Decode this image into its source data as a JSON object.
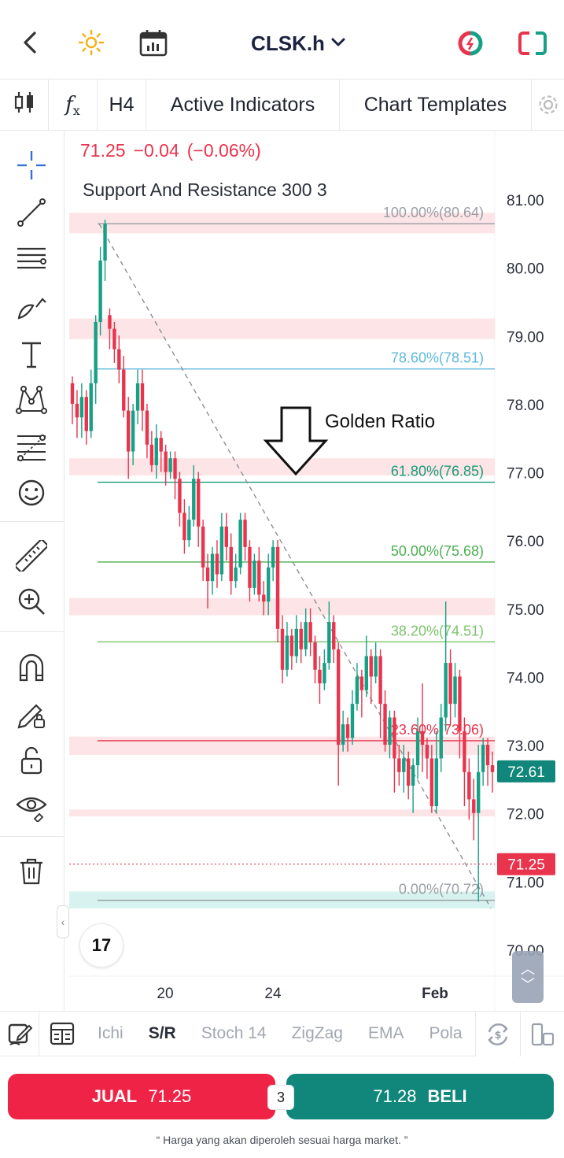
{
  "header": {
    "symbol": "CLSK.h",
    "icons": [
      "back-arrow-icon",
      "sun-icon",
      "calendar-icon",
      "chevron-down-icon",
      "signal-circle-icon",
      "expand-frame-icon"
    ]
  },
  "toolbar": {
    "timeframe": "H4",
    "active_indicators": "Active Indicators",
    "chart_templates": "Chart Templates",
    "fx_label": "f"
  },
  "chart": {
    "last_price": "71.25",
    "change": "−0.04",
    "change_pct": "(−0.06%)",
    "indicator_label": "Support And Resistance 300 3",
    "annotation": "Golden Ratio",
    "current_price_tag": "71.25",
    "other_price_tag": "72.61",
    "tv_logo": "17"
  },
  "chart_data": {
    "type": "candlestick",
    "y_ticks": [
      "81.00",
      "80.00",
      "79.00",
      "78.00",
      "77.00",
      "76.00",
      "75.00",
      "74.00",
      "73.00",
      "72.00",
      "71.00",
      "70.00"
    ],
    "x_ticks": [
      "20",
      "24",
      "Feb"
    ],
    "ylim": [
      70.0,
      81.0
    ],
    "fib_levels": [
      {
        "label": "100.00%(80.64)",
        "value": 80.64,
        "color": "#9a9ea6"
      },
      {
        "label": "78.60%(78.51)",
        "value": 78.51,
        "color": "#5fb8dd"
      },
      {
        "label": "61.80%(76.85)",
        "value": 76.85,
        "color": "#169c7a"
      },
      {
        "label": "50.00%(75.68)",
        "value": 75.68,
        "color": "#4caf50"
      },
      {
        "label": "38.20%(74.51)",
        "value": 74.51,
        "color": "#7cc36b"
      },
      {
        "label": "23.60%(73.06)",
        "value": 73.06,
        "color": "#e8344c"
      },
      {
        "label": "0.00%(70.72)",
        "value": 70.72,
        "color": "#9a9ea6"
      }
    ],
    "sr_zones": [
      {
        "from": 80.5,
        "to": 80.8,
        "color": "#fde4e6"
      },
      {
        "from": 78.95,
        "to": 79.25,
        "color": "#fde4e6"
      },
      {
        "from": 76.95,
        "to": 77.2,
        "color": "#fde4e6"
      },
      {
        "from": 74.9,
        "to": 75.15,
        "color": "#fde4e6"
      },
      {
        "from": 72.85,
        "to": 73.12,
        "color": "#fde4e6"
      },
      {
        "from": 71.95,
        "to": 72.05,
        "color": "#fde4e6"
      },
      {
        "from": 70.6,
        "to": 70.85,
        "color": "#d8f3ef"
      }
    ],
    "candles": [
      [
        78.3,
        78.0,
        78.4,
        77.7
      ],
      [
        78.0,
        77.8,
        78.2,
        77.5
      ],
      [
        77.8,
        78.1,
        78.3,
        77.5
      ],
      [
        78.1,
        77.6,
        78.2,
        77.4
      ],
      [
        77.6,
        78.3,
        78.5,
        77.5
      ],
      [
        78.3,
        79.2,
        79.3,
        78.0
      ],
      [
        79.2,
        80.1,
        80.3,
        79.0
      ],
      [
        80.1,
        80.64,
        80.7,
        79.8
      ],
      [
        79.3,
        79.1,
        79.4,
        78.8
      ],
      [
        79.1,
        78.8,
        79.2,
        78.6
      ],
      [
        78.8,
        78.5,
        79.0,
        78.3
      ],
      [
        78.5,
        77.9,
        78.7,
        77.8
      ],
      [
        77.9,
        77.3,
        78.1,
        76.9
      ],
      [
        77.3,
        77.9,
        78.0,
        77.1
      ],
      [
        77.9,
        78.3,
        78.5,
        77.7
      ],
      [
        78.3,
        77.9,
        78.5,
        77.6
      ],
      [
        77.9,
        77.4,
        78.0,
        77.2
      ],
      [
        77.4,
        77.1,
        77.6,
        77.0
      ],
      [
        77.1,
        77.5,
        77.7,
        76.9
      ],
      [
        77.5,
        77.3,
        77.6,
        77.0
      ],
      [
        77.3,
        77.0,
        77.4,
        76.8
      ],
      [
        77.0,
        77.2,
        77.3,
        76.9
      ],
      [
        77.2,
        76.9,
        77.3,
        76.6
      ],
      [
        76.9,
        76.4,
        77.0,
        76.2
      ],
      [
        76.4,
        76.0,
        76.6,
        75.8
      ],
      [
        76.0,
        76.3,
        76.5,
        75.9
      ],
      [
        76.3,
        76.9,
        77.1,
        76.2
      ],
      [
        76.9,
        76.2,
        77.0,
        75.9
      ],
      [
        76.2,
        75.6,
        76.3,
        75.4
      ],
      [
        75.6,
        75.4,
        75.8,
        75.0
      ],
      [
        75.4,
        75.8,
        75.9,
        75.2
      ],
      [
        75.8,
        75.5,
        76.0,
        75.3
      ],
      [
        75.5,
        76.2,
        76.4,
        75.4
      ],
      [
        76.2,
        75.9,
        76.4,
        75.7
      ],
      [
        75.9,
        75.4,
        76.1,
        75.2
      ],
      [
        75.4,
        75.6,
        75.8,
        75.3
      ],
      [
        75.6,
        76.3,
        76.4,
        75.5
      ],
      [
        76.3,
        75.9,
        76.4,
        75.7
      ],
      [
        75.9,
        75.3,
        76.0,
        75.1
      ],
      [
        75.3,
        75.7,
        75.8,
        75.2
      ],
      [
        75.7,
        75.2,
        75.9,
        75.1
      ],
      [
        75.2,
        75.1,
        75.4,
        74.9
      ],
      [
        75.1,
        75.6,
        75.8,
        74.9
      ],
      [
        75.6,
        75.9,
        76.0,
        75.4
      ],
      [
        75.9,
        74.7,
        76.0,
        74.5
      ],
      [
        74.7,
        74.1,
        74.9,
        73.9
      ],
      [
        74.1,
        74.6,
        74.8,
        74.0
      ],
      [
        74.6,
        74.3,
        74.7,
        74.1
      ],
      [
        74.3,
        74.7,
        74.9,
        74.2
      ],
      [
        74.7,
        74.4,
        74.8,
        74.2
      ],
      [
        74.4,
        74.8,
        75.0,
        74.3
      ],
      [
        74.8,
        74.5,
        75.0,
        74.3
      ],
      [
        74.5,
        74.1,
        74.6,
        73.9
      ],
      [
        74.1,
        73.9,
        74.3,
        73.6
      ],
      [
        73.9,
        74.2,
        74.4,
        73.8
      ],
      [
        74.2,
        74.8,
        75.1,
        74.1
      ],
      [
        74.8,
        74.4,
        74.9,
        74.2
      ],
      [
        74.4,
        73.0,
        74.5,
        72.4
      ],
      [
        73.0,
        73.3,
        73.5,
        72.9
      ],
      [
        73.3,
        73.1,
        73.4,
        72.9
      ],
      [
        73.1,
        73.6,
        73.8,
        73.0
      ],
      [
        73.6,
        74.0,
        74.2,
        73.5
      ],
      [
        74.0,
        73.8,
        74.1,
        73.4
      ],
      [
        73.8,
        74.3,
        74.6,
        73.7
      ],
      [
        74.3,
        74.0,
        74.4,
        73.6
      ],
      [
        74.0,
        74.3,
        74.5,
        73.9
      ],
      [
        74.3,
        73.6,
        74.4,
        73.1
      ],
      [
        73.6,
        73.0,
        73.8,
        72.9
      ],
      [
        73.0,
        73.4,
        73.5,
        72.8
      ],
      [
        73.4,
        72.8,
        73.5,
        72.3
      ],
      [
        72.8,
        72.6,
        73.0,
        72.4
      ],
      [
        72.6,
        72.8,
        73.0,
        72.3
      ],
      [
        72.8,
        72.4,
        72.9,
        72.2
      ],
      [
        72.4,
        72.7,
        72.8,
        72.0
      ],
      [
        72.7,
        73.2,
        73.4,
        72.5
      ],
      [
        73.2,
        73.0,
        73.9,
        72.6
      ],
      [
        73.0,
        72.8,
        73.1,
        72.5
      ],
      [
        72.8,
        72.1,
        73.0,
        72.0
      ],
      [
        72.1,
        72.8,
        73.2,
        72.0
      ],
      [
        72.8,
        73.4,
        73.6,
        72.6
      ],
      [
        73.4,
        74.2,
        75.1,
        73.2
      ],
      [
        74.2,
        73.6,
        74.4,
        73.3
      ],
      [
        73.6,
        74.0,
        74.2,
        73.4
      ],
      [
        74.0,
        73.2,
        74.1,
        72.8
      ],
      [
        73.2,
        72.6,
        73.4,
        72.1
      ],
      [
        72.6,
        72.2,
        72.8,
        71.9
      ],
      [
        72.2,
        72.0,
        72.5,
        71.6
      ],
      [
        72.0,
        72.6,
        73.0,
        70.7
      ],
      [
        72.6,
        73.0,
        73.1,
        72.4
      ],
      [
        73.0,
        72.7,
        73.1,
        72.4
      ],
      [
        72.7,
        72.6,
        72.9,
        72.3
      ]
    ]
  },
  "left_tools": [
    "crosshair-icon",
    "trend-line-icon",
    "horizontal-lines-icon",
    "brush-icon",
    "text-icon",
    "pattern-icon",
    "fib-icon",
    "emoji-icon",
    "ruler-icon",
    "zoom-in-icon",
    "magnet-icon",
    "lock-draw-icon",
    "unlock-icon",
    "eye-icon",
    "trash-icon"
  ],
  "indicators_bar": {
    "items": [
      "Ichi",
      "S/R",
      "Stoch 14",
      "ZigZag",
      "EMA",
      "Pola"
    ],
    "active": "S/R"
  },
  "trade": {
    "sell_label": "JUAL",
    "sell_price": "71.25",
    "buy_price": "71.28",
    "buy_label": "BELI",
    "spread": "3"
  },
  "disclaimer": "“ Harga yang akan diperoleh sesuai harga market. ”"
}
